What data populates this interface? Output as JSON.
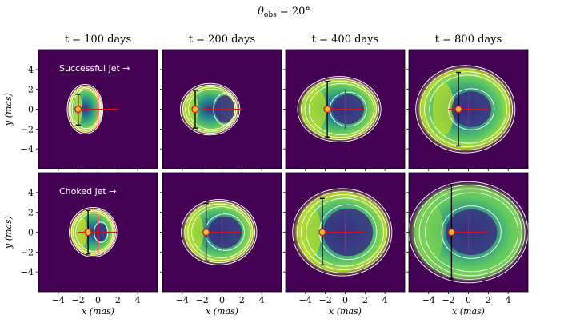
{
  "figure": {
    "suptitle_main": "θ",
    "suptitle_sub": "obs",
    "suptitle_rest": " = 20°"
  },
  "colors": {
    "background": "#440154",
    "contour": "#ffffff",
    "centroid_cross": "#e0101a",
    "errorbar": "#000000",
    "marker_fill": "#f7b43a",
    "marker_edge": "#c0201a",
    "inner_dark": "#3b2f80",
    "ring_teal": "#23898e",
    "ring_green": "#5ec962",
    "ring_yellow": "#d8e219"
  },
  "chart_data": {
    "type": "image-grid",
    "title": "θobs = 20°",
    "columns": [
      "t = 100 days",
      "t = 200 days",
      "t = 400 days",
      "t = 800 days"
    ],
    "rows": [
      "Successful jet →",
      "Choked jet →"
    ],
    "xlabel": "x (mas)",
    "ylabel": "y (mas)",
    "xlim": [
      -6,
      6
    ],
    "ylim": [
      -6,
      6
    ],
    "xticks": [
      -4,
      -2,
      0,
      2,
      4
    ],
    "yticks": [
      -4,
      -2,
      0,
      2,
      4
    ],
    "xtick_labels": [
      "−4",
      "−2",
      "0",
      "2",
      "4"
    ],
    "ytick_labels": [
      "−4",
      "−2",
      "0",
      "2",
      "4"
    ],
    "panels": [
      {
        "row": 0,
        "col": 0,
        "text": "Successful jet →",
        "image_rx": 1.8,
        "image_ry": 2.5,
        "image_cx": -1.3,
        "inner_rx": 0.0,
        "inner_ry": 0.0,
        "bright_x": -2.0,
        "marker": [
          -2.0,
          0.0
        ],
        "errorbar_y": [
          -1.6,
          1.5
        ],
        "centroid": [
          0.0,
          0.0
        ],
        "centroid_arms": [
          2.0,
          2.0
        ],
        "tint": "#d8e219"
      },
      {
        "row": 0,
        "col": 1,
        "text": "",
        "image_rx": 3.0,
        "image_ry": 2.6,
        "image_cx": -1.2,
        "inner_rx": 1.0,
        "inner_ry": 1.4,
        "bright_x": -3.0,
        "marker": [
          -2.7,
          0.0
        ],
        "errorbar_y": [
          -1.9,
          1.9
        ],
        "centroid": [
          0.0,
          0.0
        ],
        "centroid_arms": [
          2.0,
          2.0
        ],
        "tint": "#b5de2b"
      },
      {
        "row": 0,
        "col": 2,
        "text": "",
        "image_rx": 4.2,
        "image_ry": 3.3,
        "image_cx": -0.6,
        "inner_rx": 1.6,
        "inner_ry": 1.5,
        "bright_x": -2.8,
        "marker": [
          -1.8,
          0.0
        ],
        "errorbar_y": [
          -2.8,
          2.8
        ],
        "centroid": [
          0.0,
          0.0
        ],
        "centroid_arms": [
          2.0,
          2.0
        ],
        "tint": "#b5de2b"
      },
      {
        "row": 0,
        "col": 3,
        "text": "",
        "image_rx": 5.0,
        "image_ry": 4.4,
        "image_cx": -0.3,
        "inner_rx": 2.0,
        "inner_ry": 1.8,
        "bright_x": -2.5,
        "marker": [
          -1.0,
          0.0
        ],
        "errorbar_y": [
          -3.7,
          3.7
        ],
        "centroid": [
          0.0,
          0.0
        ],
        "centroid_arms": [
          2.0,
          2.0
        ],
        "tint": "#b5de2b"
      },
      {
        "row": 1,
        "col": 0,
        "text": "Choked jet →",
        "image_rx": 2.4,
        "image_ry": 2.5,
        "image_cx": -0.5,
        "inner_rx": 0.6,
        "inner_ry": 0.9,
        "bright_x": -1.6,
        "marker": [
          -1.0,
          0.0
        ],
        "errorbar_y": [
          -2.2,
          2.2
        ],
        "centroid": [
          0.0,
          0.0
        ],
        "centroid_arms": [
          2.0,
          2.0
        ],
        "tint": "#d8e219"
      },
      {
        "row": 1,
        "col": 1,
        "text": "",
        "image_rx": 3.8,
        "image_ry": 3.3,
        "image_cx": -0.3,
        "inner_rx": 1.7,
        "inner_ry": 1.6,
        "bright_x": -2.7,
        "marker": [
          -1.6,
          0.0
        ],
        "errorbar_y": [
          -2.9,
          2.9
        ],
        "centroid": [
          0.0,
          0.0
        ],
        "centroid_arms": [
          2.0,
          2.0
        ],
        "tint": "#b5de2b"
      },
      {
        "row": 1,
        "col": 2,
        "text": "",
        "image_rx": 5.0,
        "image_ry": 4.4,
        "image_cx": -0.3,
        "inner_rx": 2.5,
        "inner_ry": 2.4,
        "bright_x": -3.5,
        "marker": [
          -2.3,
          0.0
        ],
        "errorbar_y": [
          -3.3,
          3.4
        ],
        "centroid": [
          0.0,
          0.0
        ],
        "centroid_arms": [
          2.0,
          2.0
        ],
        "tint": "#b5de2b"
      },
      {
        "row": 1,
        "col": 3,
        "text": "",
        "image_rx": 6.0,
        "image_ry": 5.1,
        "image_cx": 0.0,
        "inner_rx": 2.6,
        "inner_ry": 2.3,
        "bright_x": -3.8,
        "marker": [
          -1.7,
          0.0
        ],
        "errorbar_y": [
          -4.7,
          4.8
        ],
        "centroid": [
          0.0,
          0.0
        ],
        "centroid_arms": [
          2.0,
          2.0
        ],
        "tint": "#7ad151"
      }
    ]
  }
}
